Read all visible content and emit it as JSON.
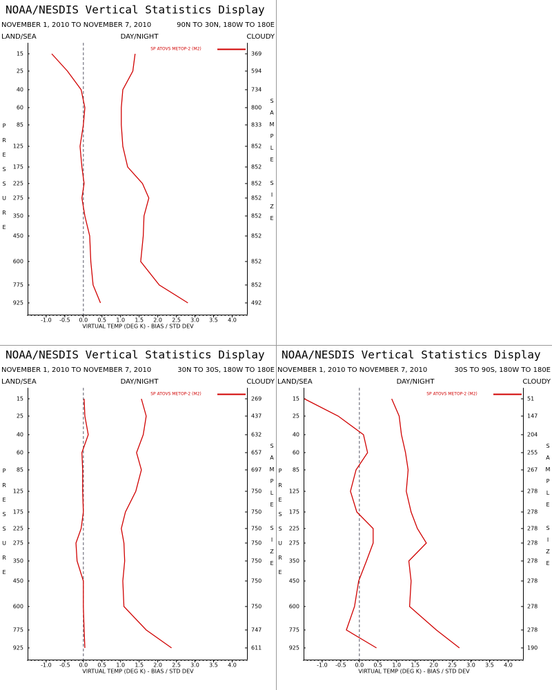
{
  "chart_data": [
    {
      "type": "line",
      "title": "NOAA/NESDIS Vertical Statistics Display",
      "subtitle": "NOVEMBER 1, 2010 TO NOVEMBER 7, 2010",
      "region": "90N TO 30N, 180W TO 180E",
      "land_sea": "LAND/SEA",
      "day_night": "DAY/NIGHT",
      "cloudy": "CLOUDY",
      "y_label": "PRESSURE",
      "y2_label": "SAMPLE SIZE",
      "x_label": "VIRTUAL TEMP (DEG K) - BIAS / STD DEV",
      "categories": [
        15,
        25,
        40,
        60,
        85,
        125,
        175,
        225,
        275,
        350,
        450,
        600,
        775,
        925
      ],
      "sample_size": [
        369,
        594,
        734,
        800,
        833,
        852,
        852,
        852,
        852,
        852,
        852,
        852,
        852,
        492
      ],
      "series": [
        {
          "name": "SP ATOVS METOP-2 (M2)",
          "color": "#d00000",
          "values": [
            -0.85,
            -0.43,
            -0.06,
            0.04,
            0.0,
            -0.09,
            -0.04,
            0.02,
            -0.04,
            0.04,
            0.17,
            0.2,
            0.26,
            0.46
          ]
        },
        {
          "color": "#d00000",
          "values": [
            1.39,
            1.33,
            1.06,
            1.02,
            1.02,
            1.06,
            1.19,
            1.59,
            1.76,
            1.63,
            1.61,
            1.54,
            2.04,
            2.81
          ]
        }
      ],
      "xlim": [
        -1.5,
        4.4
      ],
      "xticks": [
        {
          "value": -1,
          "label": "-1.0"
        },
        -0.5,
        {
          "value": 0,
          "label": "0.0"
        },
        0.5,
        {
          "value": 1,
          "label": "1.0"
        },
        1.5,
        {
          "value": 2,
          "label": "2.0"
        },
        2.5,
        {
          "value": 3,
          "label": "3.0"
        },
        3.5,
        {
          "value": 4,
          "label": "4.0"
        }
      ]
    },
    {
      "type": "line",
      "title": "NOAA/NESDIS Vertical Statistics Display",
      "subtitle": "NOVEMBER 1, 2010 TO NOVEMBER 7, 2010",
      "region": "30N TO 30S, 180W TO 180E",
      "land_sea": "LAND/SEA",
      "day_night": "DAY/NIGHT",
      "cloudy": "CLOUDY",
      "y_label": "PRESSURE",
      "y2_label": "SAMPLE SIZE",
      "x_label": "VIRTUAL TEMP (DEG K) - BIAS / STD DEV",
      "categories": [
        15,
        25,
        40,
        60,
        85,
        125,
        175,
        225,
        275,
        350,
        450,
        600,
        775,
        925
      ],
      "sample_size": [
        269,
        437,
        632,
        657,
        697,
        750,
        750,
        750,
        750,
        750,
        750,
        750,
        747,
        611
      ],
      "series": [
        {
          "name": "SP ATOVS METOP-2 (M2)",
          "color": "#d00000",
          "values": [
            0.02,
            0.04,
            0.13,
            -0.04,
            -0.02,
            -0.02,
            0.0,
            -0.06,
            -0.2,
            -0.17,
            0.0,
            0.0,
            0.02,
            0.04
          ]
        },
        {
          "color": "#d00000",
          "values": [
            1.56,
            1.69,
            1.61,
            1.43,
            1.56,
            1.41,
            1.13,
            1.02,
            1.09,
            1.11,
            1.06,
            1.09,
            1.69,
            2.37
          ]
        }
      ],
      "xlim": [
        -1.5,
        4.4
      ],
      "xticks": [
        {
          "value": -1,
          "label": "-1.0"
        },
        -0.5,
        {
          "value": 0,
          "label": "0.0"
        },
        0.5,
        {
          "value": 1,
          "label": "1.0"
        },
        1.5,
        {
          "value": 2,
          "label": "2.0"
        },
        2.5,
        {
          "value": 3,
          "label": "3.0"
        },
        3.5,
        {
          "value": 4,
          "label": "4.0"
        }
      ]
    },
    {
      "type": "line",
      "title": "NOAA/NESDIS Vertical Statistics Display",
      "subtitle": "NOVEMBER 1, 2010 TO NOVEMBER 7, 2010",
      "region": "30S TO 90S, 180W TO 180E",
      "land_sea": "LAND/SEA",
      "day_night": "DAY/NIGHT",
      "cloudy": "CLOUDY",
      "y_label": "PRESSURE",
      "y2_label": "SAMPLE SIZE",
      "x_label": "VIRTUAL TEMP (DEG K) - BIAS / STD DEV",
      "categories": [
        15,
        25,
        40,
        60,
        85,
        125,
        175,
        225,
        275,
        350,
        450,
        600,
        775,
        925
      ],
      "sample_size": [
        51,
        147,
        204,
        255,
        267,
        278,
        278,
        278,
        278,
        278,
        278,
        278,
        278,
        190
      ],
      "series": [
        {
          "name": "SP ATOVS METOP-2 (M2)",
          "color": "#d00000",
          "values": [
            -1.48,
            -0.57,
            0.11,
            0.22,
            -0.09,
            -0.24,
            -0.07,
            0.37,
            0.37,
            0.19,
            -0.02,
            -0.13,
            -0.35,
            0.46
          ]
        },
        {
          "color": "#d00000",
          "values": [
            0.87,
            1.07,
            1.13,
            1.24,
            1.31,
            1.26,
            1.39,
            1.56,
            1.8,
            1.33,
            1.39,
            1.35,
            2.07,
            2.69
          ]
        }
      ],
      "xlim": [
        -1.5,
        4.4
      ],
      "xticks": [
        {
          "value": -1,
          "label": "-1.0"
        },
        -0.5,
        {
          "value": 0,
          "label": "0.0"
        },
        0.5,
        {
          "value": 1,
          "label": "1.0"
        },
        1.5,
        {
          "value": 2,
          "label": "2.0"
        },
        2.5,
        {
          "value": 3,
          "label": "3.0"
        },
        3.5,
        {
          "value": 4,
          "label": "4.0"
        }
      ]
    }
  ]
}
